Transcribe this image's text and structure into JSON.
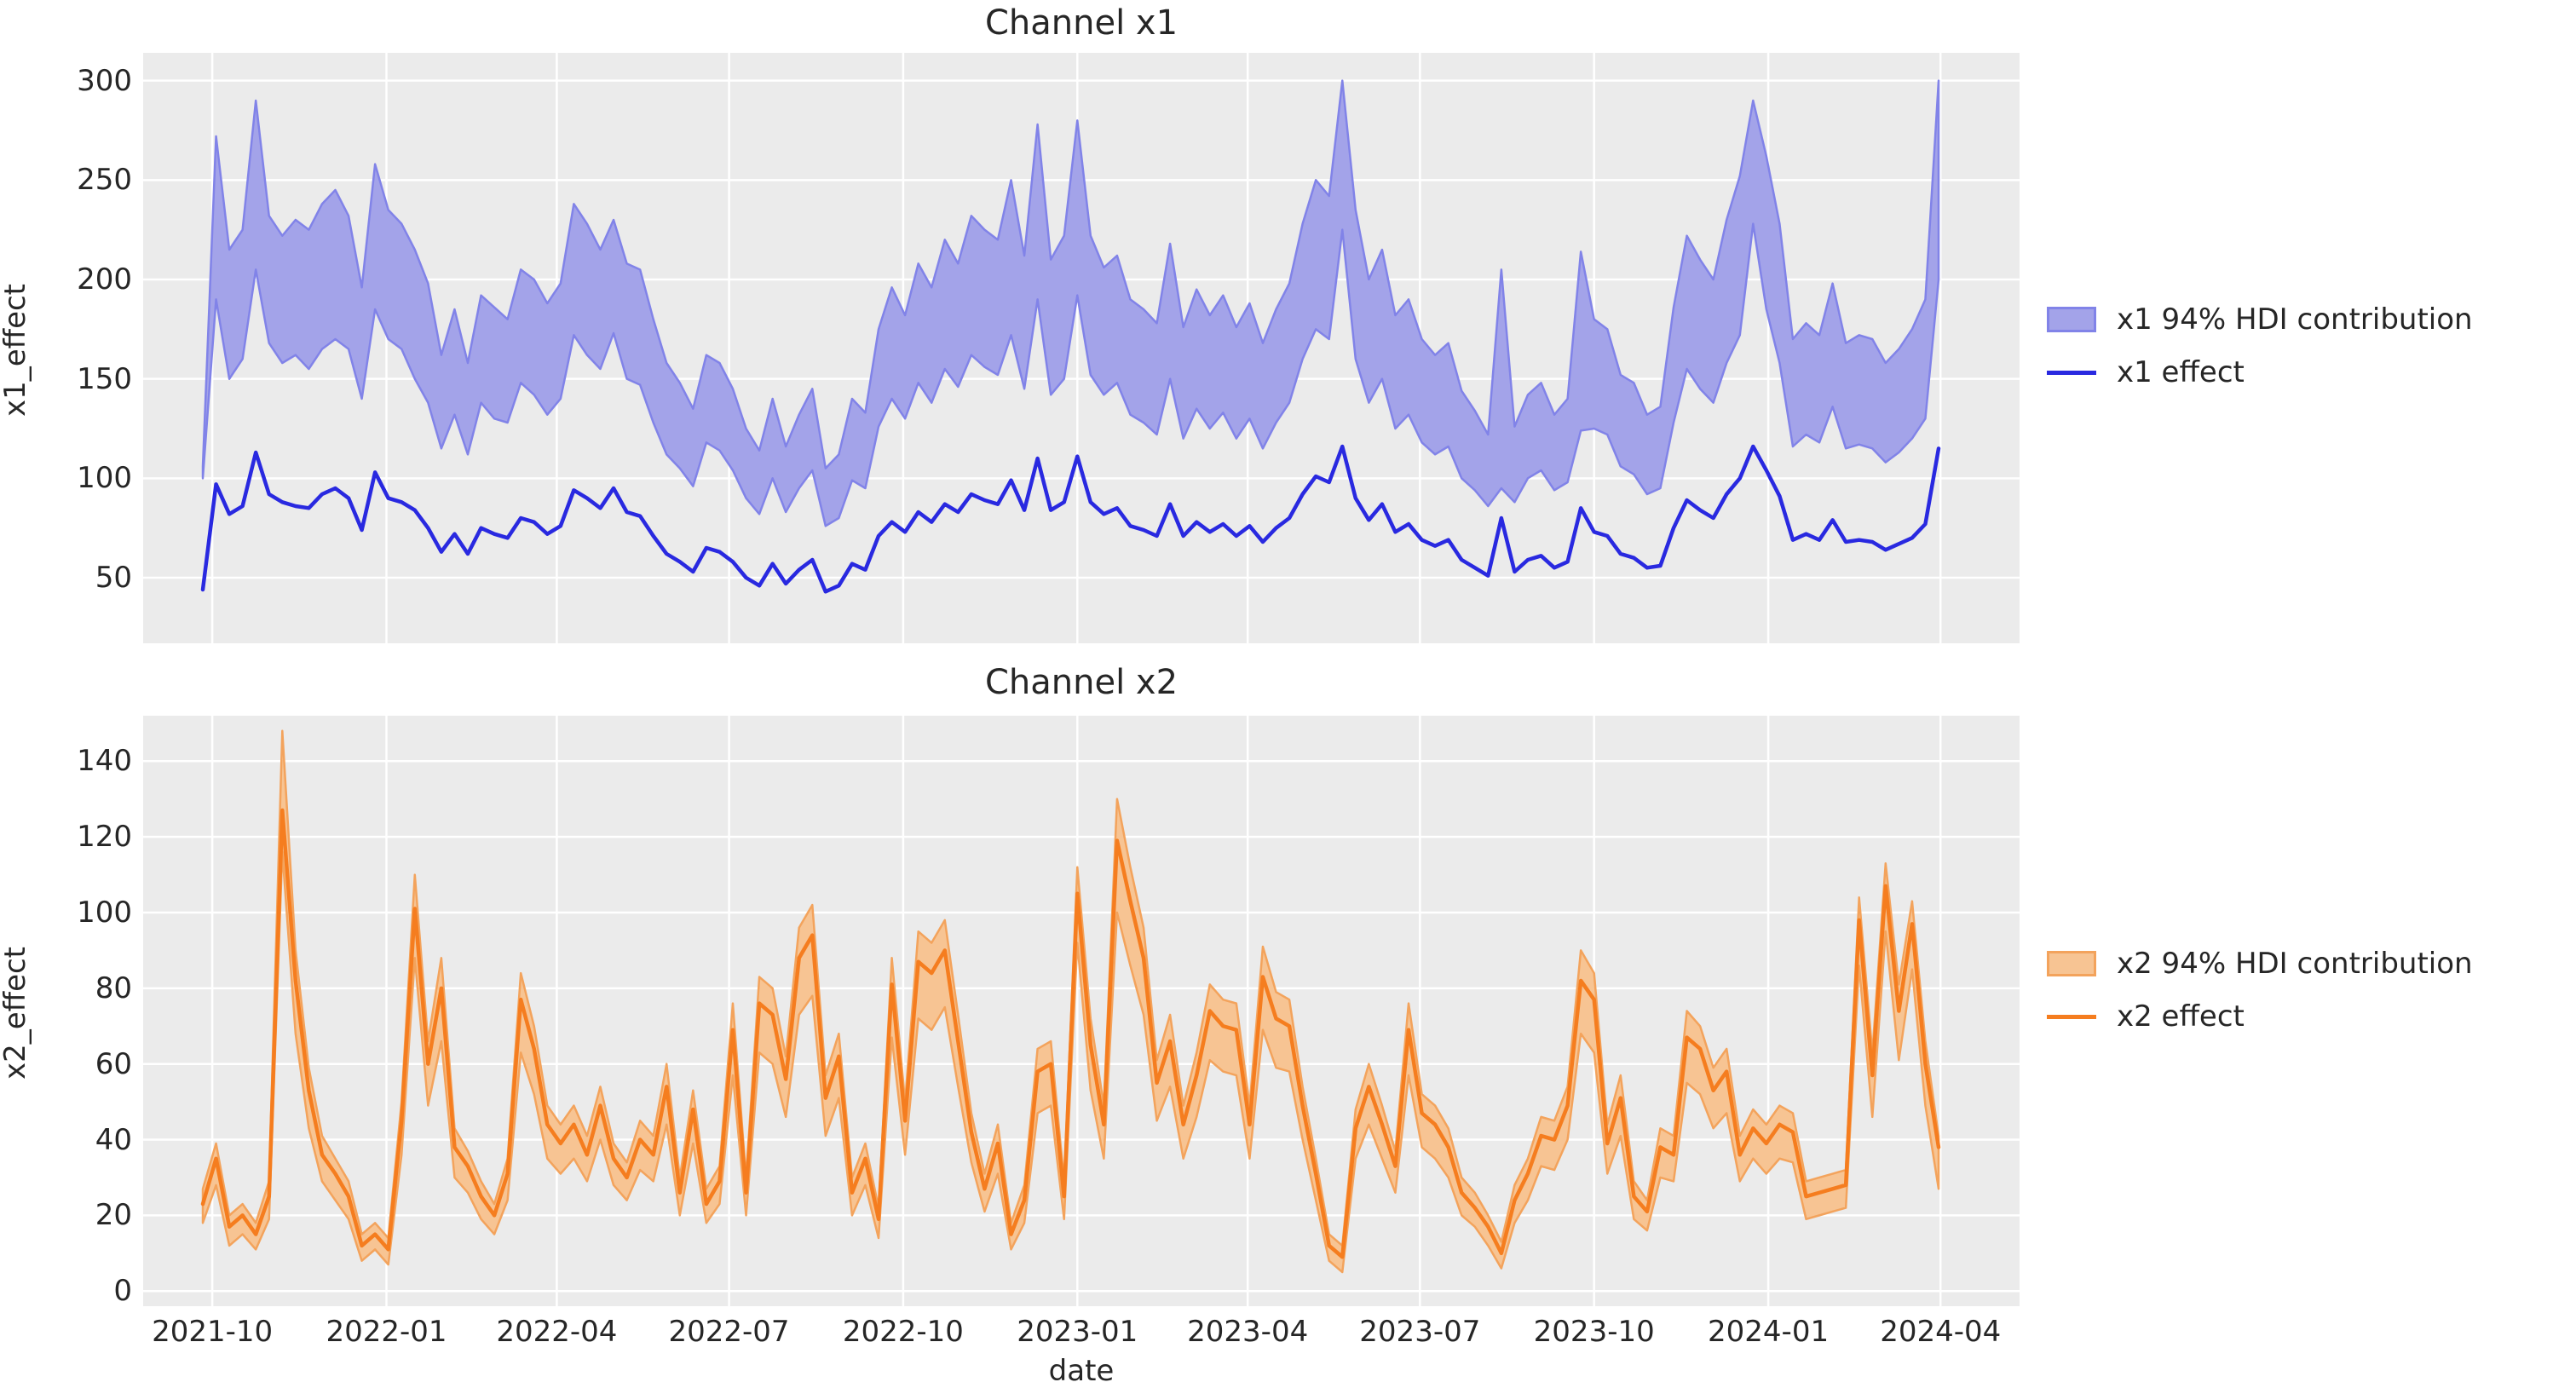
{
  "figure": {
    "bg": "#ffffff",
    "axes_bg": "#ebebeb",
    "grid_color": "#ffffff",
    "text_color": "#262626"
  },
  "xticks": [
    {
      "label": "2021-10",
      "date": "2021-10-01"
    },
    {
      "label": "2022-01",
      "date": "2022-01-01"
    },
    {
      "label": "2022-04",
      "date": "2022-04-01"
    },
    {
      "label": "2022-07",
      "date": "2022-07-01"
    },
    {
      "label": "2022-10",
      "date": "2022-10-01"
    },
    {
      "label": "2023-01",
      "date": "2023-01-01"
    },
    {
      "label": "2023-04",
      "date": "2023-04-01"
    },
    {
      "label": "2023-07",
      "date": "2023-07-01"
    },
    {
      "label": "2023-10",
      "date": "2023-10-01"
    },
    {
      "label": "2024-01",
      "date": "2024-01-01"
    },
    {
      "label": "2024-04",
      "date": "2024-04-01"
    }
  ],
  "chart_data": [
    {
      "type": "line+band",
      "title": "Channel x1",
      "ylabel": "x1_effect",
      "xlabel": "",
      "legend": [
        {
          "label": "x1 94% HDI contribution",
          "kind": "patch"
        },
        {
          "label": "x1 effect",
          "kind": "line"
        }
      ],
      "colors": {
        "line": "#2929e0",
        "band_fill": "#a3a3e9",
        "band_edge": "#8183e8"
      },
      "ylim": [
        17,
        314
      ],
      "yticks": [
        50,
        100,
        150,
        200,
        250,
        300
      ],
      "grid": true,
      "legend_position": "right",
      "x_start": "2021-09-26",
      "x_step_days": 7,
      "line": [
        44,
        97,
        82,
        86,
        113,
        92,
        88,
        86,
        85,
        92,
        95,
        90,
        74,
        103,
        90,
        88,
        84,
        75,
        63,
        72,
        62,
        75,
        72,
        70,
        80,
        78,
        72,
        76,
        94,
        90,
        85,
        95,
        83,
        81,
        71,
        62,
        58,
        53,
        65,
        63,
        58,
        50,
        46,
        57,
        47,
        54,
        59,
        43,
        46,
        57,
        54,
        71,
        78,
        73,
        83,
        78,
        87,
        83,
        92,
        89,
        87,
        99,
        84,
        110,
        84,
        88,
        111,
        88,
        82,
        85,
        76,
        74,
        71,
        87,
        71,
        78,
        73,
        77,
        71,
        76,
        68,
        75,
        80,
        92,
        101,
        98,
        116,
        90,
        79,
        87,
        73,
        77,
        69,
        66,
        69,
        59,
        55,
        51,
        80,
        53,
        59,
        61,
        55,
        58,
        85,
        73,
        71,
        62,
        60,
        55,
        56,
        75,
        89,
        84,
        80,
        92,
        100,
        116,
        104,
        91,
        69,
        72,
        69,
        79,
        68,
        69,
        68,
        64,
        67,
        70,
        77,
        115
      ],
      "band_lower": [
        100,
        190,
        150,
        160,
        205,
        168,
        158,
        162,
        155,
        165,
        170,
        165,
        140,
        185,
        170,
        165,
        150,
        138,
        115,
        132,
        112,
        138,
        130,
        128,
        148,
        142,
        132,
        140,
        172,
        162,
        155,
        173,
        150,
        147,
        128,
        112,
        105,
        96,
        118,
        114,
        104,
        90,
        82,
        100,
        83,
        95,
        104,
        76,
        80,
        99,
        95,
        126,
        140,
        130,
        148,
        138,
        155,
        146,
        162,
        156,
        152,
        172,
        145,
        190,
        142,
        150,
        192,
        152,
        142,
        148,
        132,
        128,
        122,
        150,
        120,
        135,
        125,
        133,
        120,
        130,
        115,
        128,
        138,
        160,
        175,
        170,
        225,
        160,
        138,
        150,
        125,
        132,
        118,
        112,
        116,
        100,
        94,
        86,
        95,
        88,
        100,
        104,
        94,
        98,
        124,
        125,
        122,
        106,
        102,
        92,
        95,
        128,
        155,
        145,
        138,
        158,
        172,
        228,
        185,
        158,
        116,
        122,
        118,
        136,
        115,
        117,
        115,
        108,
        113,
        120,
        130,
        200
      ],
      "band_upper": [
        106,
        272,
        215,
        225,
        290,
        232,
        222,
        230,
        225,
        238,
        245,
        232,
        196,
        258,
        235,
        228,
        215,
        198,
        162,
        185,
        158,
        192,
        186,
        180,
        205,
        200,
        188,
        198,
        238,
        228,
        215,
        230,
        208,
        205,
        180,
        158,
        148,
        135,
        162,
        158,
        145,
        125,
        114,
        140,
        116,
        132,
        145,
        105,
        112,
        140,
        133,
        175,
        196,
        182,
        208,
        196,
        220,
        208,
        232,
        225,
        220,
        250,
        212,
        278,
        210,
        222,
        280,
        222,
        206,
        212,
        190,
        185,
        178,
        218,
        176,
        195,
        182,
        192,
        176,
        188,
        168,
        185,
        198,
        228,
        250,
        242,
        300,
        235,
        200,
        215,
        182,
        190,
        170,
        162,
        168,
        144,
        134,
        122,
        205,
        126,
        142,
        148,
        132,
        140,
        214,
        180,
        175,
        152,
        148,
        132,
        136,
        186,
        222,
        210,
        200,
        230,
        252,
        290,
        262,
        228,
        170,
        178,
        172,
        198,
        168,
        172,
        170,
        158,
        165,
        175,
        190,
        300
      ]
    },
    {
      "type": "line+band",
      "title": "Channel x2",
      "ylabel": "x2_effect",
      "xlabel": "date",
      "legend": [
        {
          "label": "x2 94% HDI contribution",
          "kind": "patch"
        },
        {
          "label": "x2 effect",
          "kind": "line"
        }
      ],
      "colors": {
        "line": "#f57d1f",
        "band_fill": "#f7c493",
        "band_edge": "#f3a35c"
      },
      "ylim": [
        -4,
        152
      ],
      "yticks": [
        0,
        20,
        40,
        60,
        80,
        100,
        120,
        140
      ],
      "grid": true,
      "legend_position": "right",
      "x_start": "2021-09-26",
      "x_step_days": 7,
      "line": [
        23,
        35,
        17,
        20,
        15,
        25,
        127,
        82,
        53,
        36,
        31,
        25,
        12,
        15,
        11,
        45,
        101,
        60,
        80,
        38,
        33,
        25,
        20,
        31,
        77,
        64,
        44,
        39,
        44,
        36,
        49,
        35,
        30,
        40,
        36,
        54,
        26,
        48,
        23,
        29,
        69,
        26,
        76,
        73,
        56,
        88,
        94,
        51,
        62,
        26,
        35,
        19,
        81,
        45,
        87,
        84,
        90,
        66,
        42,
        27,
        39,
        15,
        24,
        58,
        60,
        25,
        105,
        65,
        44,
        119,
        103,
        88,
        55,
        66,
        44,
        57,
        74,
        70,
        69,
        44,
        83,
        72,
        70,
        49,
        31,
        12,
        9,
        43,
        54,
        44,
        33,
        69,
        47,
        44,
        38,
        26,
        22,
        17,
        10,
        24,
        31,
        41,
        40,
        49,
        82,
        77,
        39,
        51,
        25,
        21,
        38,
        36,
        67,
        64,
        53,
        58,
        36,
        43,
        39,
        44,
        42,
        25,
        26,
        27,
        28,
        98,
        57,
        107,
        74,
        97,
        60,
        38
      ],
      "band_lower": [
        18,
        28,
        12,
        15,
        11,
        19,
        116,
        68,
        43,
        29,
        24,
        19,
        8,
        11,
        7,
        36,
        88,
        49,
        66,
        30,
        26,
        19,
        15,
        24,
        63,
        52,
        35,
        31,
        35,
        29,
        40,
        28,
        24,
        32,
        29,
        44,
        20,
        39,
        18,
        23,
        57,
        20,
        63,
        60,
        46,
        73,
        78,
        41,
        51,
        20,
        28,
        14,
        67,
        36,
        72,
        69,
        75,
        54,
        34,
        21,
        31,
        11,
        18,
        47,
        49,
        19,
        92,
        53,
        35,
        100,
        86,
        73,
        45,
        54,
        35,
        46,
        61,
        58,
        57,
        35,
        69,
        59,
        58,
        40,
        24,
        8,
        5,
        35,
        44,
        35,
        26,
        57,
        38,
        35,
        30,
        20,
        17,
        12,
        6,
        18,
        24,
        33,
        32,
        40,
        68,
        63,
        31,
        41,
        19,
        16,
        30,
        29,
        55,
        52,
        43,
        47,
        29,
        35,
        31,
        35,
        34,
        19,
        20,
        21,
        22,
        86,
        46,
        95,
        61,
        85,
        49,
        27
      ],
      "band_upper": [
        27,
        39,
        20,
        23,
        18,
        29,
        148,
        90,
        59,
        41,
        35,
        29,
        15,
        18,
        14,
        50,
        110,
        66,
        88,
        43,
        37,
        29,
        23,
        35,
        84,
        70,
        49,
        44,
        49,
        41,
        54,
        39,
        34,
        45,
        41,
        60,
        30,
        53,
        27,
        33,
        76,
        30,
        83,
        80,
        62,
        96,
        102,
        57,
        68,
        30,
        39,
        22,
        88,
        50,
        95,
        92,
        98,
        73,
        47,
        31,
        44,
        18,
        28,
        64,
        66,
        29,
        112,
        72,
        49,
        130,
        112,
        96,
        61,
        73,
        49,
        63,
        81,
        77,
        76,
        49,
        91,
        79,
        77,
        54,
        35,
        15,
        12,
        48,
        60,
        49,
        37,
        76,
        52,
        49,
        43,
        30,
        26,
        20,
        13,
        28,
        35,
        46,
        45,
        54,
        90,
        84,
        44,
        57,
        29,
        24,
        43,
        41,
        74,
        70,
        59,
        64,
        41,
        48,
        44,
        49,
        47,
        29,
        30,
        31,
        32,
        104,
        63,
        113,
        81,
        103,
        66,
        41
      ]
    }
  ]
}
